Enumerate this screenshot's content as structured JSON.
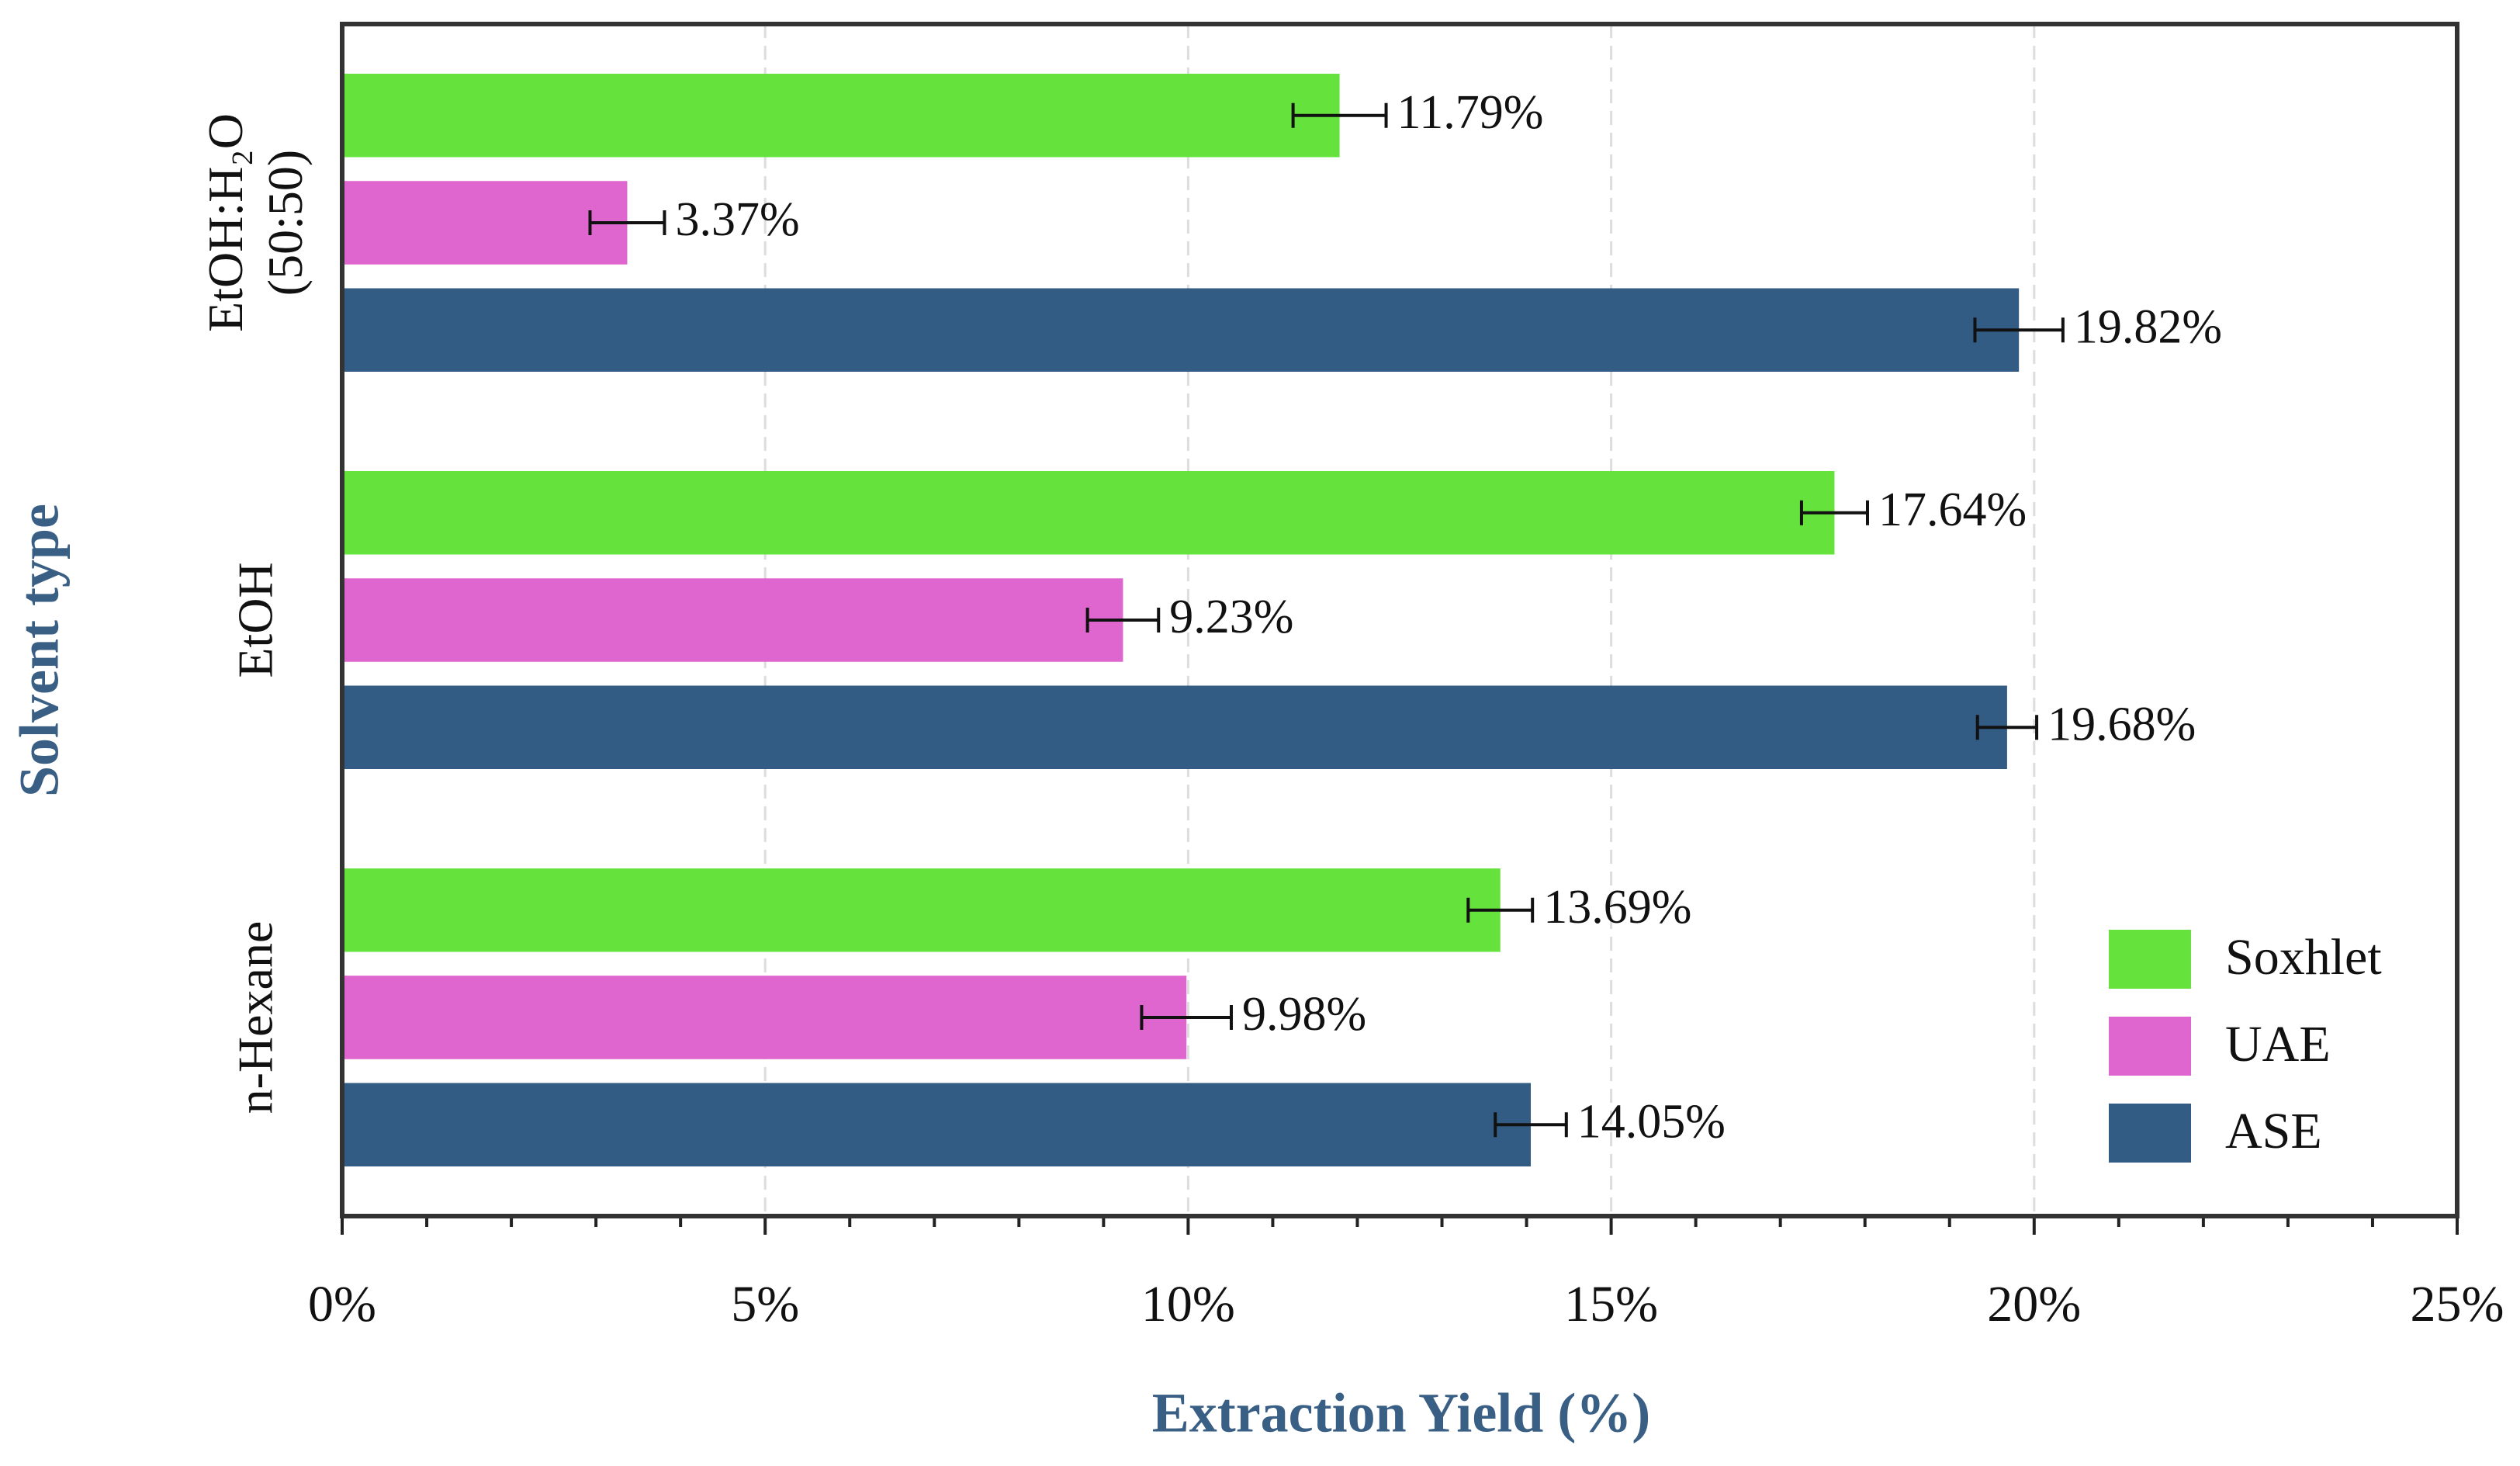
{
  "chart_data": {
    "type": "hbar",
    "x_label": "Extraction Yield (%)",
    "y_label": "Solvent type",
    "categories": [
      "EtOH:H₂O (50:50)",
      "EtOH",
      "n-Hexane"
    ],
    "series": [
      {
        "name": "Soxhlet",
        "color": "#66e23c",
        "values": [
          11.79,
          17.64,
          13.69
        ],
        "errors": [
          0.55,
          0.39,
          0.38
        ],
        "value_labels": [
          "11.79%",
          "17.64%",
          "13.69%"
        ]
      },
      {
        "name": "UAE",
        "color": "#e066cf",
        "values": [
          3.37,
          9.23,
          9.98
        ],
        "errors": [
          0.44,
          0.42,
          0.53
        ],
        "value_labels": [
          "3.37%",
          "9.23%",
          "9.98%"
        ]
      },
      {
        "name": "ASE",
        "color": "#335c84",
        "values": [
          19.82,
          19.68,
          14.05
        ],
        "errors": [
          0.52,
          0.35,
          0.42
        ],
        "value_labels": [
          "19.82%",
          "19.68%",
          "14.05%"
        ]
      }
    ],
    "xlim": [
      0,
      25
    ],
    "xticks": [
      {
        "value": 0,
        "label": "0%"
      },
      {
        "value": 5,
        "label": "5%"
      },
      {
        "value": 10,
        "label": "10%"
      },
      {
        "value": 15,
        "label": "15%"
      },
      {
        "value": 20,
        "label": "20%"
      },
      {
        "value": 25,
        "label": "25%"
      }
    ],
    "grid": true,
    "legend": "lower right"
  }
}
